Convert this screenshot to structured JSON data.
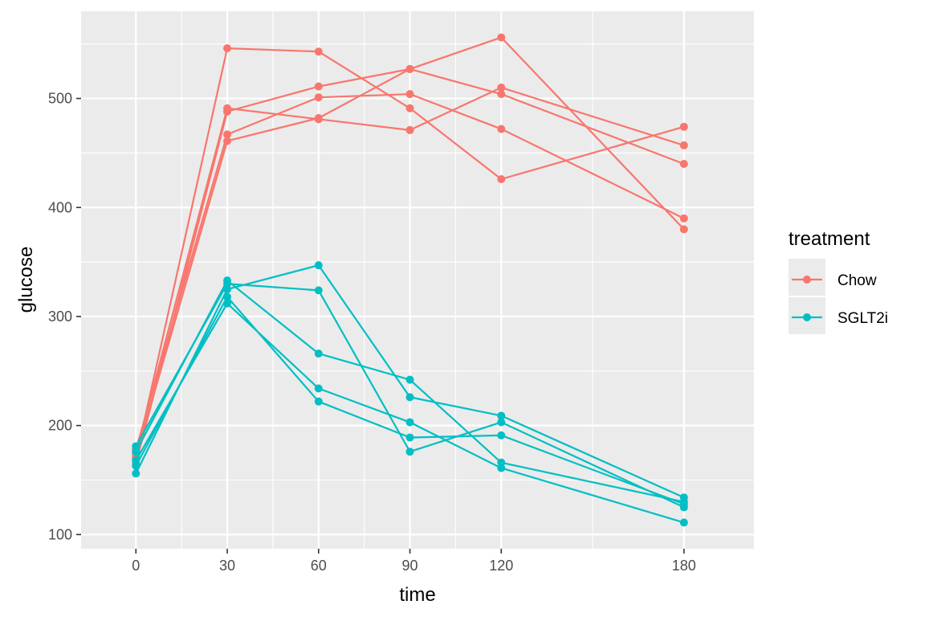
{
  "chart_data": {
    "type": "line",
    "xlabel": "time",
    "ylabel": "glucose",
    "x": [
      0,
      30,
      60,
      90,
      120,
      180
    ],
    "x_ticks": [
      0,
      30,
      60,
      90,
      120,
      180
    ],
    "y_ticks": [
      100,
      200,
      300,
      400,
      500
    ],
    "xlim": [
      -18,
      203
    ],
    "ylim": [
      87,
      580
    ],
    "grid": true,
    "legend": {
      "title": "treatment",
      "placement": "right",
      "entries": [
        "Chow",
        "SGLT2i"
      ]
    },
    "series": [
      {
        "name": "Chow",
        "color": "#F8766D",
        "values": [
          170,
          546,
          543,
          491,
          426,
          474
        ]
      },
      {
        "name": "Chow",
        "color": "#F8766D",
        "values": [
          165,
          488,
          511,
          527,
          556,
          380
        ]
      },
      {
        "name": "Chow",
        "color": "#F8766D",
        "values": [
          175,
          491,
          481,
          471,
          510,
          457
        ]
      },
      {
        "name": "Chow",
        "color": "#F8766D",
        "values": [
          178,
          467,
          501,
          504,
          472,
          390
        ]
      },
      {
        "name": "Chow",
        "color": "#F8766D",
        "values": [
          172,
          461,
          482,
          527,
          504,
          440
        ]
      },
      {
        "name": "SGLT2i",
        "color": "#00BFC4",
        "values": [
          181,
          330,
          324,
          176,
          203,
          125
        ]
      },
      {
        "name": "SGLT2i",
        "color": "#00BFC4",
        "values": [
          176,
          333,
          266,
          242,
          166,
          130
        ]
      },
      {
        "name": "SGLT2i",
        "color": "#00BFC4",
        "values": [
          168,
          312,
          234,
          203,
          161,
          111
        ]
      },
      {
        "name": "SGLT2i",
        "color": "#00BFC4",
        "values": [
          156,
          325,
          347,
          226,
          209,
          134
        ]
      },
      {
        "name": "SGLT2i",
        "color": "#00BFC4",
        "values": [
          163,
          318,
          222,
          189,
          191,
          128
        ]
      }
    ]
  }
}
